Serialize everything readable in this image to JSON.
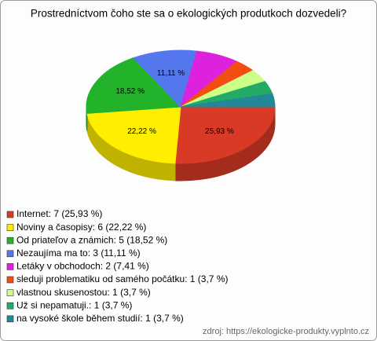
{
  "chart_data": {
    "type": "pie3d",
    "title": "Prostredníctvom čoho ste sa o ekologických produtkoch dozvedeli?",
    "categories": [
      "Internet: 7 (25,93 %)",
      "Noviny a časopisy: 6 (22,22 %)",
      "Od priateľov a známich: 5 (18,52 %)",
      "Nezaujíma ma to: 3 (11,11 %)",
      "Letáky v obchodoch: 2 (7,41 %)",
      "sleduji problematiku od samého počátku: 1 (3,7 %)",
      "vlastnou skusenostou: 1 (3,7 %)",
      "Už si nepamatuji.: 1 (3,7 %)",
      "na vysoké škole během studií: 1 (3,7 %)"
    ],
    "values": [
      25.93,
      22.22,
      18.52,
      11.11,
      7.41,
      3.7,
      3.7,
      3.7,
      3.7
    ],
    "value_labels": [
      "25,93 %",
      "22,22 %",
      "18,52 %",
      "11,11 %",
      null,
      null,
      null,
      null,
      null
    ],
    "colors": [
      "#d93a26",
      "#ffee00",
      "#22b32a",
      "#5577ee",
      "#dd22dd",
      "#f24e12",
      "#ccff88",
      "#22aa66",
      "#228899"
    ],
    "source": "zdroj: https://ekologicke-produkty.vyplnto.cz"
  }
}
